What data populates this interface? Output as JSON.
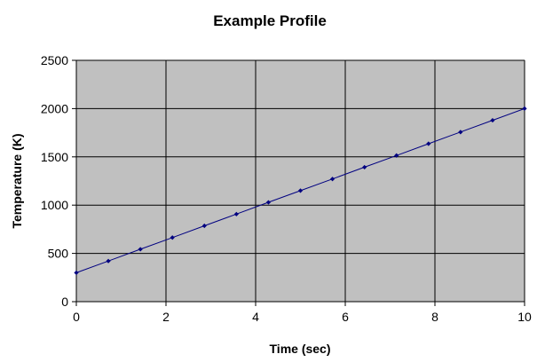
{
  "chart_data": {
    "type": "line",
    "title": "Example Profile",
    "xlabel": "Time (sec)",
    "ylabel": "Temperature (K)",
    "xlim": [
      0,
      10
    ],
    "ylim": [
      0,
      2500
    ],
    "xticks": [
      0,
      2,
      4,
      6,
      8,
      10
    ],
    "yticks": [
      0,
      500,
      1000,
      1500,
      2000,
      2500
    ],
    "grid": true,
    "legend": "none",
    "plot_background": "#c0c0c0",
    "series_color": "#000080",
    "series": [
      {
        "x": [
          0,
          0.714,
          1.429,
          2.143,
          2.857,
          3.571,
          4.286,
          5.0,
          5.714,
          6.429,
          7.143,
          7.857,
          8.571,
          9.286,
          10.0
        ],
        "y": [
          300,
          421,
          543,
          664,
          786,
          907,
          1029,
          1150,
          1271,
          1393,
          1514,
          1636,
          1757,
          1879,
          2000
        ]
      }
    ]
  }
}
